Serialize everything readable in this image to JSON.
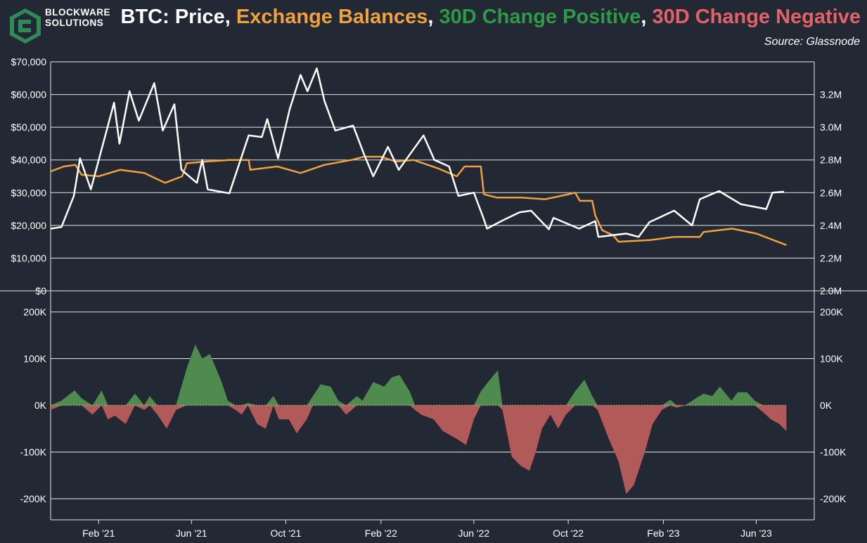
{
  "brand": {
    "line1": "BLOCKWARE",
    "line2": "SOLUTIONS"
  },
  "colors": {
    "background": "#222834",
    "grid": "#e6e6e6",
    "price": "#ffffff",
    "balance": "#f0a03c",
    "positive": "#4f8a4f",
    "negative": "#b25a5a",
    "positive_title": "#2f9a45",
    "negative_title": "#e56168"
  },
  "chart_data": [
    {
      "type": "line",
      "title": {
        "prefix": "BTC: ",
        "price": "Price",
        "sep1": ", ",
        "balance": "Exchange Balances",
        "sep2": ", ",
        "positive": "30D Change Positive",
        "sep3": ", ",
        "negative": "30D Change Negative"
      },
      "source": "Source: Glassnode",
      "x_ticks": [
        "Feb '21",
        "Jun '21",
        "Oct '21",
        "Feb '22",
        "Jun '22",
        "Oct '22",
        "Feb '23",
        "Jun '23"
      ],
      "x_range": [
        "2020-12-01",
        "2023-08-15"
      ],
      "y_left": {
        "ticks": [
          "$0",
          "$10,000",
          "$20,000",
          "$30,000",
          "$40,000",
          "$50,000",
          "$60,000",
          "$70,000"
        ],
        "range": [
          0,
          70000
        ]
      },
      "y_right": {
        "ticks": [
          "2.0M",
          "2.2M",
          "2.4M",
          "2.6M",
          "2.8M",
          "3.0M",
          "3.2M"
        ],
        "range": [
          2000000,
          3400000
        ]
      },
      "series": [
        {
          "name": "Price",
          "axis": "left",
          "points": [
            [
              "2020-12-01",
              19000
            ],
            [
              "2020-12-15",
              19500
            ],
            [
              "2020-12-31",
              29000
            ],
            [
              "2021-01-08",
              40500
            ],
            [
              "2021-01-22",
              31000
            ],
            [
              "2021-02-08",
              46000
            ],
            [
              "2021-02-21",
              57500
            ],
            [
              "2021-02-28",
              45000
            ],
            [
              "2021-03-13",
              61000
            ],
            [
              "2021-03-25",
              52000
            ],
            [
              "2021-04-14",
              63500
            ],
            [
              "2021-04-25",
              49000
            ],
            [
              "2021-05-10",
              57000
            ],
            [
              "2021-05-19",
              37000
            ],
            [
              "2021-06-08",
              33000
            ],
            [
              "2021-06-15",
              40000
            ],
            [
              "2021-06-22",
              31000
            ],
            [
              "2021-07-20",
              29800
            ],
            [
              "2021-08-14",
              47500
            ],
            [
              "2021-08-31",
              47000
            ],
            [
              "2021-09-07",
              52500
            ],
            [
              "2021-09-21",
              40500
            ],
            [
              "2021-10-06",
              55500
            ],
            [
              "2021-10-20",
              66000
            ],
            [
              "2021-10-29",
              61000
            ],
            [
              "2021-11-10",
              68000
            ],
            [
              "2021-11-20",
              58000
            ],
            [
              "2021-12-04",
              49000
            ],
            [
              "2021-12-27",
              50500
            ],
            [
              "2022-01-10",
              41800
            ],
            [
              "2022-01-22",
              35000
            ],
            [
              "2022-02-10",
              44000
            ],
            [
              "2022-02-24",
              37000
            ],
            [
              "2022-03-28",
              47500
            ],
            [
              "2022-04-11",
              40000
            ],
            [
              "2022-04-30",
              38000
            ],
            [
              "2022-05-12",
              29000
            ],
            [
              "2022-06-01",
              30000
            ],
            [
              "2022-06-13",
              22500
            ],
            [
              "2022-06-18",
              19000
            ],
            [
              "2022-07-08",
              21500
            ],
            [
              "2022-07-30",
              24000
            ],
            [
              "2022-08-14",
              24500
            ],
            [
              "2022-09-06",
              18800
            ],
            [
              "2022-09-12",
              22300
            ],
            [
              "2022-10-15",
              19000
            ],
            [
              "2022-11-05",
              21300
            ],
            [
              "2022-11-09",
              16500
            ],
            [
              "2022-12-15",
              17500
            ],
            [
              "2022-12-31",
              16500
            ],
            [
              "2023-01-14",
              21000
            ],
            [
              "2023-02-15",
              24500
            ],
            [
              "2023-03-10",
              20000
            ],
            [
              "2023-03-20",
              28000
            ],
            [
              "2023-04-14",
              30500
            ],
            [
              "2023-05-12",
              26500
            ],
            [
              "2023-06-14",
              25000
            ],
            [
              "2023-06-22",
              30000
            ],
            [
              "2023-07-07",
              30300
            ]
          ]
        },
        {
          "name": "Exchange Balances",
          "axis": "right",
          "points": [
            [
              "2020-12-01",
              2730000
            ],
            [
              "2020-12-18",
              2760000
            ],
            [
              "2021-01-02",
              2770000
            ],
            [
              "2021-01-10",
              2710000
            ],
            [
              "2021-02-01",
              2700000
            ],
            [
              "2021-03-01",
              2740000
            ],
            [
              "2021-04-01",
              2720000
            ],
            [
              "2021-04-28",
              2660000
            ],
            [
              "2021-05-20",
              2700000
            ],
            [
              "2021-05-26",
              2780000
            ],
            [
              "2021-06-20",
              2790000
            ],
            [
              "2021-07-20",
              2800000
            ],
            [
              "2021-08-14",
              2800000
            ],
            [
              "2021-08-16",
              2740000
            ],
            [
              "2021-09-20",
              2760000
            ],
            [
              "2021-10-20",
              2720000
            ],
            [
              "2021-11-20",
              2770000
            ],
            [
              "2021-12-25",
              2800000
            ],
            [
              "2022-01-10",
              2820000
            ],
            [
              "2022-02-01",
              2820000
            ],
            [
              "2022-02-20",
              2790000
            ],
            [
              "2022-03-15",
              2800000
            ],
            [
              "2022-04-15",
              2750000
            ],
            [
              "2022-05-10",
              2700000
            ],
            [
              "2022-05-20",
              2760000
            ],
            [
              "2022-06-10",
              2760000
            ],
            [
              "2022-06-14",
              2590000
            ],
            [
              "2022-07-01",
              2570000
            ],
            [
              "2022-08-01",
              2570000
            ],
            [
              "2022-09-01",
              2560000
            ],
            [
              "2022-10-01",
              2590000
            ],
            [
              "2022-10-10",
              2600000
            ],
            [
              "2022-10-16",
              2550000
            ],
            [
              "2022-11-01",
              2550000
            ],
            [
              "2022-11-05",
              2460000
            ],
            [
              "2022-11-14",
              2370000
            ],
            [
              "2022-11-28",
              2340000
            ],
            [
              "2022-12-05",
              2300000
            ],
            [
              "2023-01-15",
              2310000
            ],
            [
              "2023-02-15",
              2330000
            ],
            [
              "2023-03-20",
              2330000
            ],
            [
              "2023-03-25",
              2360000
            ],
            [
              "2023-05-01",
              2380000
            ],
            [
              "2023-06-01",
              2350000
            ],
            [
              "2023-07-10",
              2280000
            ]
          ]
        },
        {
          "name": "30D Change",
          "axis": "lower",
          "range": [
            -200000,
            200000
          ],
          "ticks": [
            "-200K",
            "-100K",
            "0K",
            "100K",
            "200K"
          ],
          "points": [
            [
              "2020-12-01",
              -10000
            ],
            [
              "2020-12-15",
              10000
            ],
            [
              "2021-01-01",
              32000
            ],
            [
              "2021-01-10",
              15000
            ],
            [
              "2021-01-24",
              -20000
            ],
            [
              "2021-02-05",
              32000
            ],
            [
              "2021-02-13",
              -30000
            ],
            [
              "2021-02-22",
              -22000
            ],
            [
              "2021-03-08",
              -40000
            ],
            [
              "2021-03-20",
              25000
            ],
            [
              "2021-04-01",
              -10000
            ],
            [
              "2021-04-08",
              20000
            ],
            [
              "2021-04-18",
              -20000
            ],
            [
              "2021-04-30",
              -50000
            ],
            [
              "2021-05-12",
              -10000
            ],
            [
              "2021-05-26",
              80000
            ],
            [
              "2021-06-06",
              130000
            ],
            [
              "2021-06-15",
              100000
            ],
            [
              "2021-06-25",
              110000
            ],
            [
              "2021-07-10",
              50000
            ],
            [
              "2021-07-18",
              10000
            ],
            [
              "2021-07-28",
              -10000
            ],
            [
              "2021-08-05",
              -20000
            ],
            [
              "2021-08-13",
              5000
            ],
            [
              "2021-08-25",
              -40000
            ],
            [
              "2021-09-05",
              -50000
            ],
            [
              "2021-09-15",
              20000
            ],
            [
              "2021-09-22",
              -30000
            ],
            [
              "2021-10-05",
              -30000
            ],
            [
              "2021-10-15",
              -60000
            ],
            [
              "2021-10-28",
              -30000
            ],
            [
              "2021-11-05",
              20000
            ],
            [
              "2021-11-15",
              45000
            ],
            [
              "2021-11-28",
              40000
            ],
            [
              "2021-12-08",
              10000
            ],
            [
              "2021-12-18",
              -20000
            ],
            [
              "2022-01-01",
              20000
            ],
            [
              "2022-01-08",
              10000
            ],
            [
              "2022-01-22",
              50000
            ],
            [
              "2022-02-05",
              40000
            ],
            [
              "2022-02-15",
              60000
            ],
            [
              "2022-02-25",
              65000
            ],
            [
              "2022-03-10",
              30000
            ],
            [
              "2022-03-17",
              -10000
            ],
            [
              "2022-03-25",
              -20000
            ],
            [
              "2022-04-10",
              -30000
            ],
            [
              "2022-04-22",
              -55000
            ],
            [
              "2022-05-08",
              -70000
            ],
            [
              "2022-05-22",
              -85000
            ],
            [
              "2022-06-01",
              -30000
            ],
            [
              "2022-06-10",
              30000
            ],
            [
              "2022-06-22",
              55000
            ],
            [
              "2022-07-02",
              75000
            ],
            [
              "2022-07-08",
              -10000
            ],
            [
              "2022-07-20",
              -110000
            ],
            [
              "2022-08-01",
              -130000
            ],
            [
              "2022-08-12",
              -140000
            ],
            [
              "2022-08-20",
              -100000
            ],
            [
              "2022-08-28",
              -50000
            ],
            [
              "2022-09-08",
              -20000
            ],
            [
              "2022-09-18",
              -50000
            ],
            [
              "2022-09-28",
              -20000
            ],
            [
              "2022-10-10",
              30000
            ],
            [
              "2022-10-22",
              55000
            ],
            [
              "2022-11-01",
              20000
            ],
            [
              "2022-11-08",
              -10000
            ],
            [
              "2022-11-22",
              -70000
            ],
            [
              "2022-12-05",
              -120000
            ],
            [
              "2022-12-15",
              -190000
            ],
            [
              "2022-12-25",
              -170000
            ],
            [
              "2023-01-08",
              -100000
            ],
            [
              "2023-01-18",
              -40000
            ],
            [
              "2023-01-30",
              -10000
            ],
            [
              "2023-02-10",
              12000
            ],
            [
              "2023-02-18",
              -5000
            ],
            [
              "2023-03-01",
              0
            ],
            [
              "2023-03-15",
              15000
            ],
            [
              "2023-03-25",
              25000
            ],
            [
              "2023-04-05",
              20000
            ],
            [
              "2023-04-15",
              40000
            ],
            [
              "2023-04-30",
              10000
            ],
            [
              "2023-05-08",
              28000
            ],
            [
              "2023-05-20",
              28000
            ],
            [
              "2023-05-30",
              10000
            ],
            [
              "2023-06-10",
              -15000
            ],
            [
              "2023-06-20",
              -30000
            ],
            [
              "2023-07-01",
              -40000
            ],
            [
              "2023-07-10",
              -55000
            ]
          ]
        }
      ]
    }
  ]
}
